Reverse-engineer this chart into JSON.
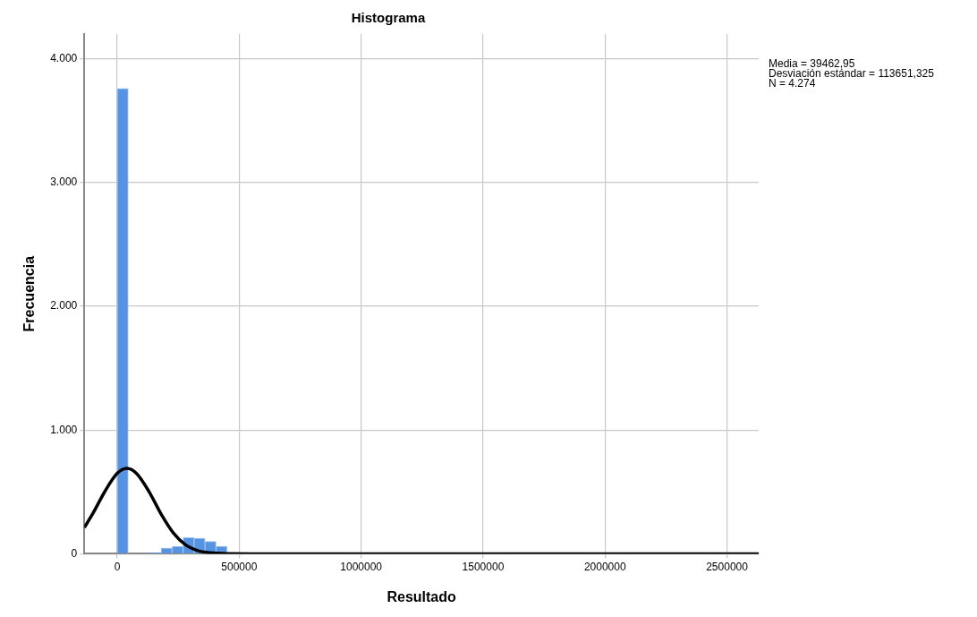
{
  "chart_data": {
    "type": "histogram",
    "title": "Histograma",
    "xlabel": "Resultado",
    "ylabel": "Frecuencia",
    "bins": [
      0,
      45000,
      90000,
      135000,
      180000,
      225000,
      270000,
      315000,
      360000,
      405000,
      450000
    ],
    "values": [
      3760,
      0,
      0,
      10,
      45,
      60,
      130,
      125,
      100,
      60
    ],
    "color": "#5694e3",
    "series": [
      {
        "type": "line",
        "color": "#000000",
        "marker": "none",
        "x": [
          -135000,
          -100000,
          -50000,
          0,
          39463,
          80000,
          130000,
          180000,
          230000,
          280000,
          330000,
          380000,
          450000,
          550000,
          2630000
        ],
        "values": [
          212,
          325,
          506,
          650,
          690,
          647,
          503,
          321,
          169,
          73,
          26,
          8,
          1,
          0,
          0
        ]
      }
    ],
    "xlim": [
      -135000,
      2630000
    ],
    "xticks": [
      0,
      500000,
      1000000,
      1500000,
      2000000,
      2500000
    ],
    "ylim": [
      0,
      4200
    ],
    "yticks": [
      0,
      {
        "value": 1000,
        "label": "1.000"
      },
      {
        "value": 2000,
        "label": "2.000"
      },
      {
        "value": 3000,
        "label": "3.000"
      },
      {
        "value": 4000,
        "label": "4.000"
      }
    ],
    "grid": true,
    "legend": false,
    "annotations": [
      "Media = 39462,95",
      "Desviación estándar = 113651,325",
      "N = 4.274"
    ]
  }
}
